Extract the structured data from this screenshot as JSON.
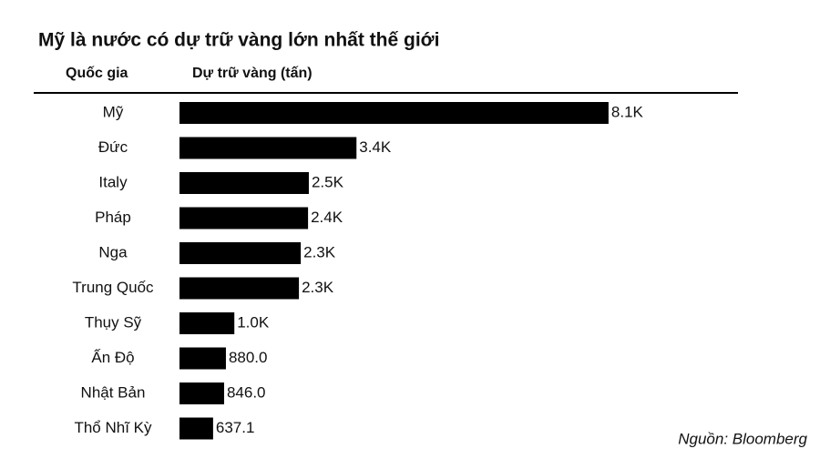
{
  "chart_data": {
    "type": "bar",
    "orientation": "horizontal",
    "title": "Mỹ là nước có dự trữ vàng lớn nhất thế giới",
    "category_axis_label": "Quốc gia",
    "value_axis_label": "Dự trữ vàng (tấn)",
    "source": "Nguồn: Bloomberg",
    "categories": [
      "Mỹ",
      "Đức",
      "Italy",
      "Pháp",
      "Nga",
      "Trung Quốc",
      "Thụy Sỹ",
      "Ấn Độ",
      "Nhật Bản",
      "Thổ Nhĩ Kỳ"
    ],
    "values": [
      8133,
      3355,
      2452,
      2437,
      2299,
      2264,
      1040,
      880,
      846,
      637.1
    ],
    "value_labels": [
      "8.1K",
      "3.4K",
      "2.5K",
      "2.4K",
      "2.3K",
      "2.3K",
      "1.0K",
      "880.0",
      "846.0",
      "637.1"
    ],
    "color": "#000000"
  }
}
